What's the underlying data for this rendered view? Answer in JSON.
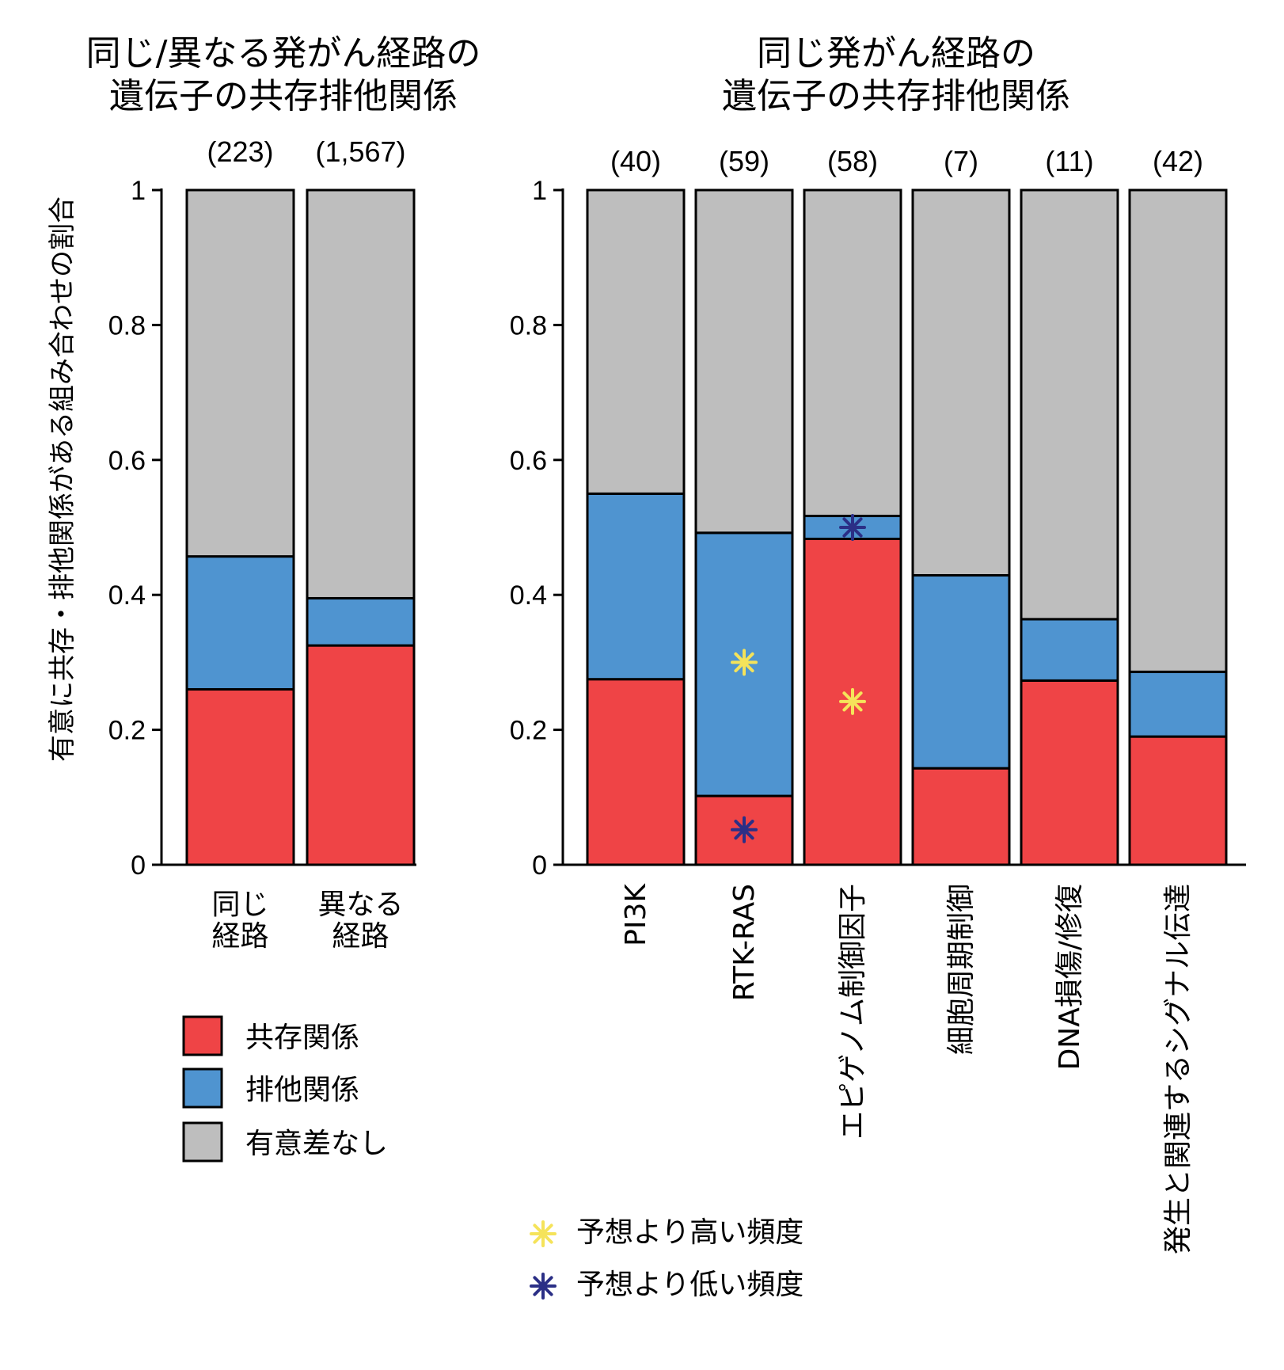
{
  "colors": {
    "cooccurrence": "#ef4446",
    "exclusivity": "#4f94d0",
    "not_significant": "#bebebe",
    "higher": "#f5e35a",
    "lower": "#2b2f86"
  },
  "chart_data": [
    {
      "type": "bar",
      "stacked": true,
      "title_lines": [
        "同じ/異なる発がん経路の",
        "遺伝子の共存排他関係"
      ],
      "ylabel": "有意に共存・排他関係がある組み合わせの割合",
      "ylim": [
        0,
        1
      ],
      "yticks": [
        "0",
        "0.2",
        "0.4",
        "0.6",
        "0.8",
        "1"
      ],
      "categories": [
        [
          "同じ",
          "経路"
        ],
        [
          "異なる",
          "経路"
        ]
      ],
      "counts": [
        "(223)",
        "(1,567)"
      ],
      "series": [
        {
          "name": "共存関係",
          "values": [
            0.26,
            0.325
          ]
        },
        {
          "name": "排他関係",
          "values": [
            0.197,
            0.07
          ]
        },
        {
          "name": "有意差なし",
          "values": [
            0.543,
            0.605
          ]
        }
      ]
    },
    {
      "type": "bar",
      "stacked": true,
      "title_lines": [
        "同じ発がん経路の",
        "遺伝子の共存排他関係"
      ],
      "ylim": [
        0,
        1
      ],
      "yticks": [
        "0",
        "0.2",
        "0.4",
        "0.6",
        "0.8",
        "1"
      ],
      "categories": [
        "PI3K",
        "RTK-RAS",
        "エピゲノム制御因子",
        "細胞周期制御",
        "DNA損傷/修復",
        "発生と関連するシグナル伝達"
      ],
      "counts": [
        "(40)",
        "(59)",
        "(58)",
        "(7)",
        "(11)",
        "(42)"
      ],
      "series": [
        {
          "name": "共存関係",
          "values": [
            0.275,
            0.102,
            0.483,
            0.143,
            0.273,
            0.19
          ]
        },
        {
          "name": "排他関係",
          "values": [
            0.275,
            0.39,
            0.034,
            0.286,
            0.091,
            0.096
          ]
        },
        {
          "name": "有意差なし",
          "values": [
            0.45,
            0.508,
            0.483,
            0.571,
            0.636,
            0.714
          ]
        }
      ],
      "annotations": [
        {
          "category": "RTK-RAS",
          "y": 0.3,
          "marker": "higher"
        },
        {
          "category": "RTK-RAS",
          "y": 0.052,
          "marker": "lower"
        },
        {
          "category": "エピゲノム制御因子",
          "y": 0.242,
          "marker": "higher"
        },
        {
          "category": "エピゲノム制御因子",
          "y": 0.5,
          "marker": "lower"
        }
      ]
    }
  ],
  "legend": {
    "items": [
      {
        "label": "共存関係",
        "key": "cooccurrence"
      },
      {
        "label": "排他関係",
        "key": "exclusivity"
      },
      {
        "label": "有意差なし",
        "key": "not_significant"
      }
    ],
    "markers": [
      {
        "label": "予想より高い頻度",
        "key": "higher"
      },
      {
        "label": "予想より低い頻度",
        "key": "lower"
      }
    ]
  }
}
